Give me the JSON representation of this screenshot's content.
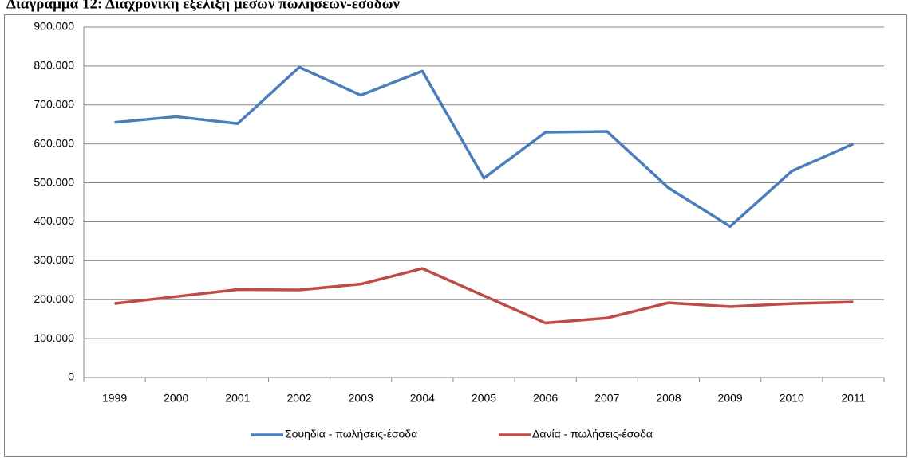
{
  "chart_data": {
    "type": "line",
    "title": "Διάγραμμα 12: Διαχρονική εξέλιξη μέσων πωλήσεων-εσόδων",
    "categories": [
      "1999",
      "2000",
      "2001",
      "2002",
      "2003",
      "2004",
      "2005",
      "2006",
      "2007",
      "2008",
      "2009",
      "2010",
      "2011"
    ],
    "series": [
      {
        "name": "Σουηδία - πωλήσεις-έσοδα",
        "color": "#4a7ebb",
        "values": [
          655000,
          670000,
          652000,
          797000,
          725000,
          787000,
          512000,
          630000,
          632000,
          487000,
          388000,
          530000,
          600000
        ]
      },
      {
        "name": "Δανία - πωλήσεις-έσοδα",
        "color": "#be4b48",
        "values": [
          190000,
          208000,
          226000,
          225000,
          240000,
          280000,
          210000,
          140000,
          153000,
          192000,
          182000,
          190000,
          194000
        ]
      }
    ],
    "ylim": [
      0,
      900000
    ],
    "yticks": [
      0,
      {
        "value": 100000,
        "label": "100.000"
      },
      {
        "value": 200000,
        "label": "200.000"
      },
      {
        "value": 300000,
        "label": "300.000"
      },
      {
        "value": 400000,
        "label": "400.000"
      },
      {
        "value": 500000,
        "label": "500.000"
      },
      {
        "value": 600000,
        "label": "600.000"
      },
      {
        "value": 700000,
        "label": "700.000"
      },
      {
        "value": 800000,
        "label": "800.000"
      },
      {
        "value": 900000,
        "label": "900.000"
      }
    ],
    "grid": true,
    "legend": "bottom"
  }
}
